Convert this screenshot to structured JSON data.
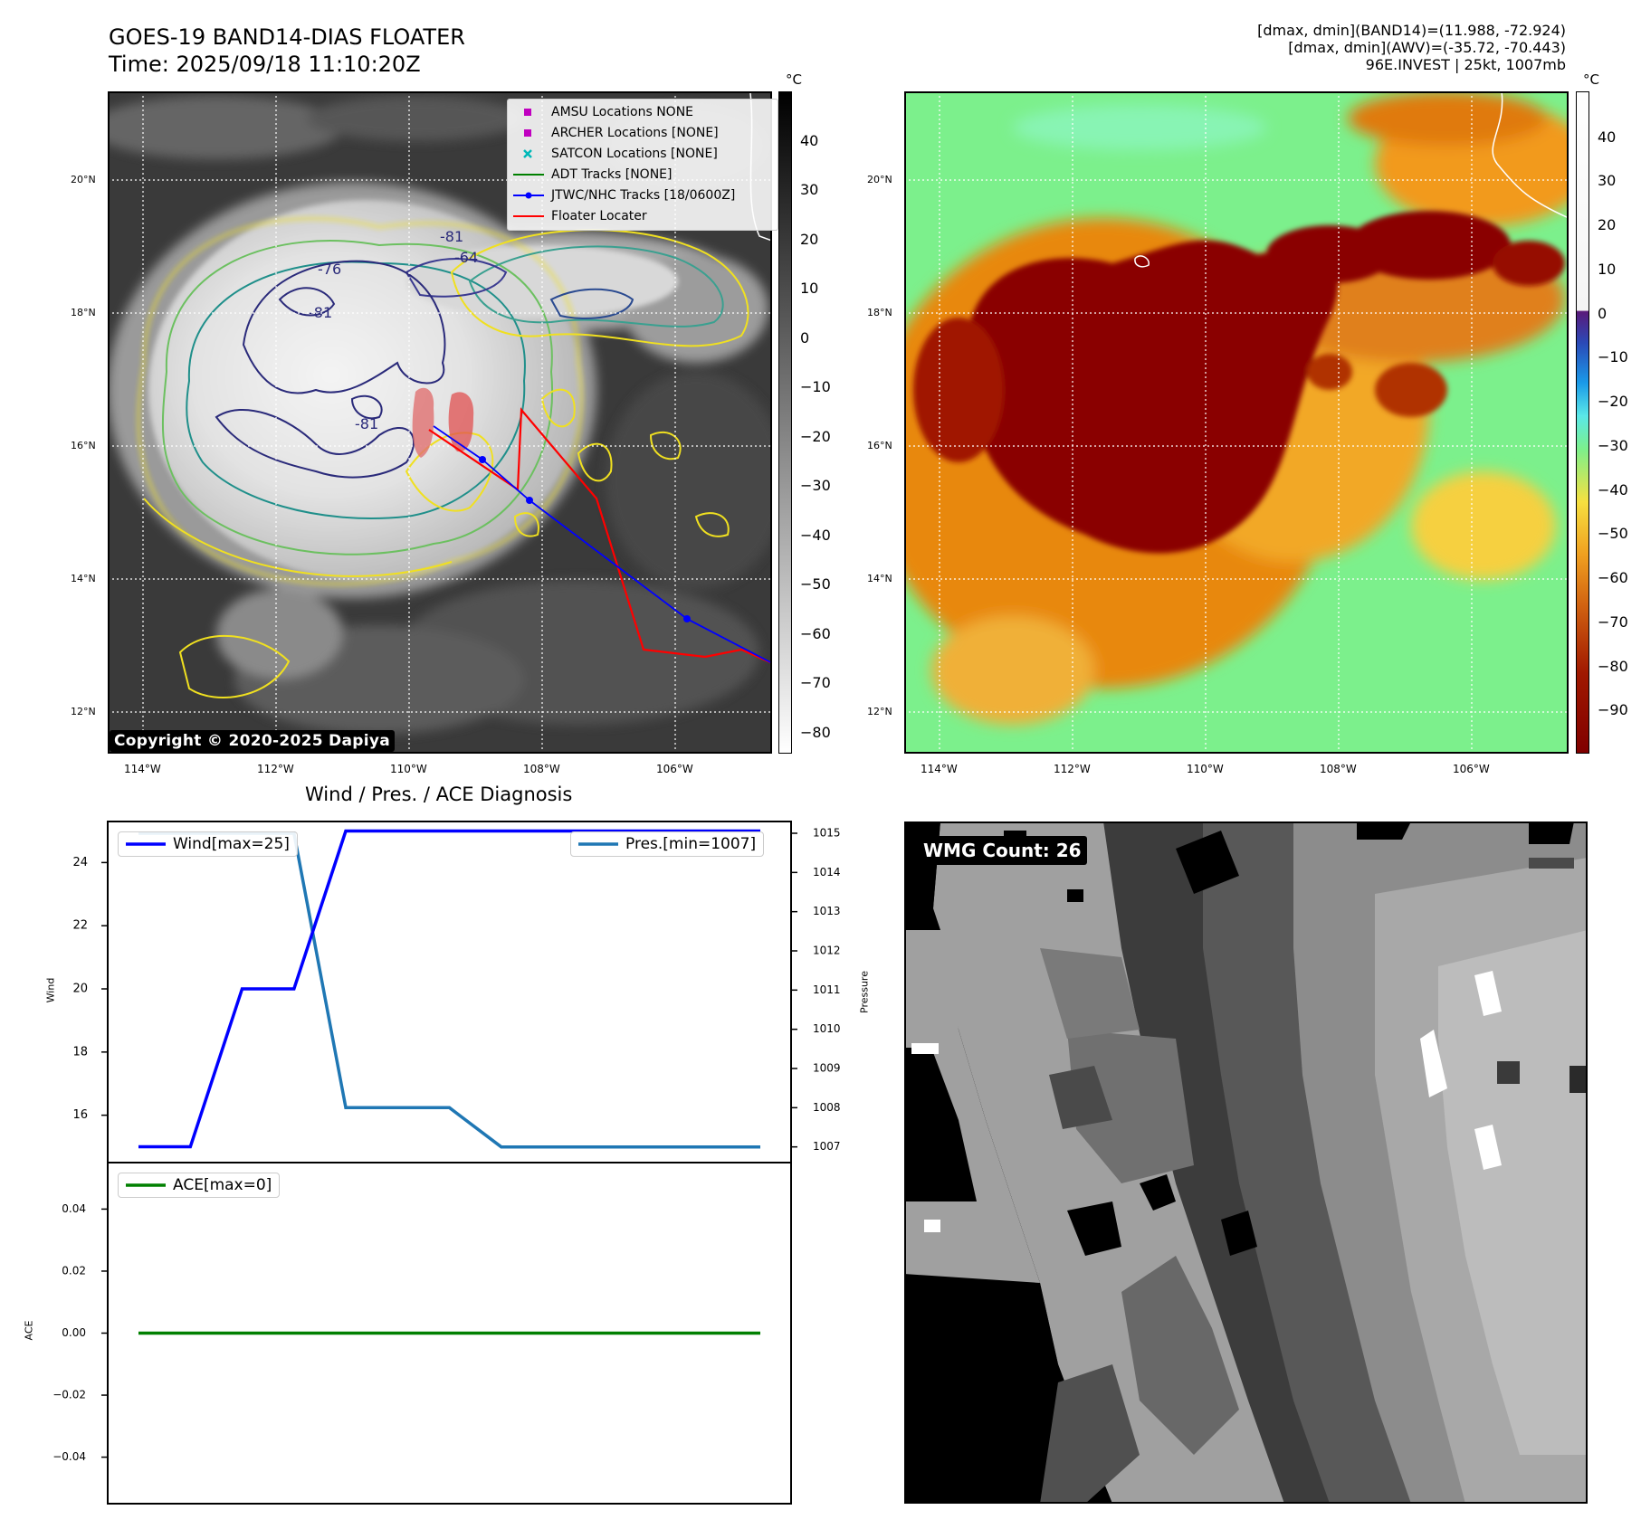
{
  "header": {
    "title_line1": "GOES-19 BAND14-DIAS FLOATER",
    "title_line2": "Time: 2025/09/18 11:10:20Z",
    "stats_line1": "[dmax, dmin](BAND14)=(11.988, -72.924)",
    "stats_line2": "[dmax, dmin](AWV)=(-35.72, -70.443)",
    "stats_line3": "96E.INVEST | 25kt, 1007mb"
  },
  "ir_panel": {
    "copyright": "Copyright © 2020-2025 Dapiya",
    "lat_labels": [
      "20°N",
      "18°N",
      "16°N",
      "14°N",
      "12°N"
    ],
    "lon_labels": [
      "114°W",
      "112°W",
      "110°W",
      "108°W",
      "106°W"
    ],
    "contour_labels": [
      "-81",
      "-76",
      "-81",
      "-81",
      "-64"
    ],
    "colorbar_unit": "°C",
    "colorbar_ticks": [
      "40",
      "30",
      "20",
      "10",
      "0",
      "−10",
      "−20",
      "−30",
      "−40",
      "−50",
      "−60",
      "−70",
      "−80"
    ],
    "legend": [
      {
        "label": "AMSU Locations NONE",
        "marker": "square",
        "color": "#c000c0"
      },
      {
        "label": "ARCHER Locations [NONE]",
        "marker": "square",
        "color": "#c000c0"
      },
      {
        "label": "SATCON Locations [NONE]",
        "marker": "x",
        "color": "#00b8b8"
      },
      {
        "label": "ADT Tracks [NONE]",
        "marker": "line",
        "color": "#008000"
      },
      {
        "label": "JTWC/NHC Tracks [18/0600Z]",
        "marker": "line-dot",
        "color": "#0000ff"
      },
      {
        "label": "Floater Locater",
        "marker": "line",
        "color": "#ff0000"
      }
    ]
  },
  "awv_panel": {
    "lat_labels": [
      "20°N",
      "18°N",
      "16°N",
      "14°N",
      "12°N"
    ],
    "lon_labels": [
      "114°W",
      "112°W",
      "110°W",
      "108°W",
      "106°W"
    ],
    "colorbar_unit": "°C",
    "colorbar_ticks": [
      "40",
      "30",
      "20",
      "10",
      "0",
      "−10",
      "−20",
      "−30",
      "−40",
      "−50",
      "−60",
      "−70",
      "−80",
      "−90"
    ]
  },
  "diagnosis": {
    "title": "Wind / Pres. / ACE Diagnosis"
  },
  "wmg_panel": {
    "badge": "WMG Count: 26"
  },
  "chart_data": [
    {
      "type": "line",
      "title": "Wind / Pres. / ACE Diagnosis",
      "ylabel": "Wind",
      "ylabel_right": "Pressure",
      "ylim": [
        14.5,
        25.3
      ],
      "ylim_right": [
        1006.6,
        1015.3
      ],
      "yticks": [
        "24",
        "22",
        "20",
        "18",
        "16"
      ],
      "yticks_right": [
        "1015",
        "1014",
        "1013",
        "1012",
        "1011",
        "1010",
        "1009",
        "1008",
        "1007"
      ],
      "x": [
        0,
        1,
        2,
        3,
        4,
        5,
        6,
        7,
        8,
        9,
        10,
        11,
        12
      ],
      "series": [
        {
          "name": "Wind[max=25]",
          "axis": "left",
          "color": "#0000ff",
          "values": [
            15,
            15,
            20,
            20,
            25,
            25,
            25,
            25,
            25,
            25,
            25,
            25,
            25
          ]
        },
        {
          "name": "Pres.[min=1007]",
          "axis": "right",
          "color": "#1f77b4",
          "values": [
            1015,
            1015,
            1015,
            1015,
            1008,
            1008,
            1008,
            1007,
            1007,
            1007,
            1007,
            1007,
            1007
          ]
        }
      ]
    },
    {
      "type": "line",
      "ylabel": "ACE",
      "ylim": [
        -0.055,
        0.055
      ],
      "yticks": [
        "0.04",
        "0.02",
        "0.00",
        "−0.02",
        "−0.04"
      ],
      "x": [
        0,
        1,
        2,
        3,
        4,
        5,
        6,
        7,
        8,
        9,
        10,
        11,
        12
      ],
      "series": [
        {
          "name": "ACE[max=0]",
          "color": "#008000",
          "values": [
            0,
            0,
            0,
            0,
            0,
            0,
            0,
            0,
            0,
            0,
            0,
            0,
            0
          ]
        }
      ]
    }
  ]
}
